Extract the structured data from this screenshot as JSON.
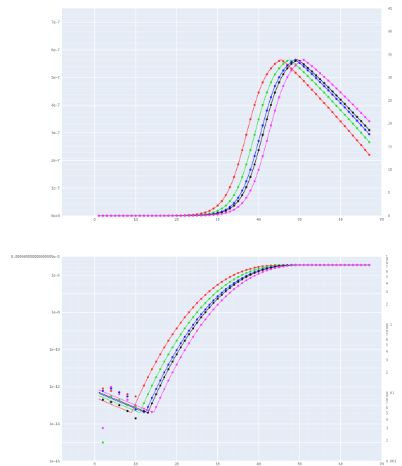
{
  "chart_data": [
    {
      "type": "scatter",
      "title": "",
      "xlabel": "",
      "ylabel": "",
      "xlim": [
        -8,
        70
      ],
      "ylim": [
        0,
        7.5e-07
      ],
      "y2lim": [
        0,
        45
      ],
      "grid": true,
      "x_ticks": [
        0,
        10,
        20,
        30,
        40,
        50,
        60,
        70
      ],
      "x_tick_labels": [
        "0",
        "10",
        "20",
        "30",
        "40",
        "50",
        "60",
        "70"
      ],
      "y_ticks": [
        0,
        1e-07,
        2e-07,
        3e-07,
        4e-07,
        5e-07,
        6e-07,
        7e-07
      ],
      "y_tick_labels": [
        "0e+0",
        "1e−7",
        "2e−7",
        "3e−7",
        "4e−7",
        "5e−7",
        "6e−7",
        "7e−7"
      ],
      "y2_ticks": [
        0,
        5,
        10,
        15,
        20,
        25,
        30,
        35,
        40,
        45
      ],
      "y2_tick_labels": [
        "0",
        "5",
        "10",
        "15",
        "20",
        "25",
        "30",
        "35",
        "40",
        "45"
      ],
      "curve_model": {
        "shape": "rise-then-decline",
        "peak_value": 5.65e-07,
        "tail_value_at_x67": 3.05e-07
      },
      "series": [
        {
          "color": "#ff2a2a",
          "x_offset": -4.0,
          "peak_x": 46.5,
          "tail_shift": -1.5e-08
        },
        {
          "color": "#22dd22",
          "x_offset": -2.0,
          "peak_x": 48.0,
          "tail_shift": -5e-09
        },
        {
          "color": "#1a1aff",
          "x_offset": -0.6,
          "peak_x": 49.0,
          "tail_shift": 0
        },
        {
          "color": "#111111",
          "x_offset": 0.0,
          "peak_x": 49.5,
          "tail_shift": 5e-09
        },
        {
          "color": "#ff33ff",
          "x_offset": 1.4,
          "peak_x": 50.5,
          "tail_shift": 1.5e-08
        }
      ]
    },
    {
      "type": "scatter",
      "title": "",
      "xlabel": "",
      "ylabel": "",
      "y_scale": "log",
      "xlim": [
        -8,
        70
      ],
      "ylim": [
        1e-16,
        1e-05
      ],
      "y2_scale": "log",
      "y2lim": [
        0.001,
        1
      ],
      "grid": true,
      "x_ticks": [
        0,
        10,
        20,
        30,
        40,
        50,
        60,
        70
      ],
      "x_tick_labels": [
        "0",
        "10",
        "20",
        "30",
        "40",
        "50",
        "60",
        "70"
      ],
      "y_ticks": [
        1e-16,
        1e-14,
        1e-12,
        1e-10,
        1e-08,
        1e-06,
        1e-05
      ],
      "y_tick_labels": [
        "1e−16",
        "1e−14",
        "1e−12",
        "1e−10",
        "1e−8",
        "1e−6",
        "0.000009999999999999e−5"
      ],
      "y2_tick_labels_major": [
        "0.001",
        "0.01",
        "0.1",
        "1"
      ],
      "y2_minor_labels": [
        "2",
        "3",
        "4",
        "5",
        "6",
        "7",
        "8",
        "9"
      ],
      "curve_model": {
        "shape": "dip-then-rise-then-saturate",
        "start_value": 5e-13,
        "dip_value_near_x13": 4e-14,
        "plateau_value": 3.5e-06
      },
      "series": [
        {
          "color": "#ff2a2a",
          "x_offset": -4.0,
          "early_scatter": [
            [
              2,
              8e-13
            ],
            [
              4,
              6e-13
            ],
            [
              6,
              5e-13
            ],
            [
              8,
              4e-13
            ],
            [
              10,
              3e-13
            ]
          ]
        },
        {
          "color": "#22dd22",
          "x_offset": -2.0,
          "early_scatter": [
            [
              2,
              1e-15
            ],
            [
              4,
              3e-13
            ],
            [
              6,
              2e-13
            ],
            [
              8,
              1e-13
            ],
            [
              10,
              8e-14
            ]
          ]
        },
        {
          "color": "#1a1aff",
          "x_offset": -0.6,
          "early_scatter": [
            [
              2,
              6e-13
            ],
            [
              4,
              8e-13
            ],
            [
              6,
              5e-13
            ],
            [
              8,
              3e-13
            ],
            [
              10,
              6e-14
            ]
          ]
        },
        {
          "color": "#111111",
          "x_offset": 0.0,
          "early_scatter": [
            [
              2,
              2e-13
            ],
            [
              4,
              1.5e-13
            ],
            [
              6,
              1e-13
            ],
            [
              8,
              5e-14
            ],
            [
              10,
              2e-14
            ]
          ]
        },
        {
          "color": "#ff33ff",
          "x_offset": 1.4,
          "early_scatter": [
            [
              2,
              6e-15
            ],
            [
              4,
              1e-12
            ],
            [
              6,
              4e-13
            ],
            [
              8,
              2e-13
            ],
            [
              10,
              1e-13
            ]
          ]
        }
      ]
    }
  ]
}
